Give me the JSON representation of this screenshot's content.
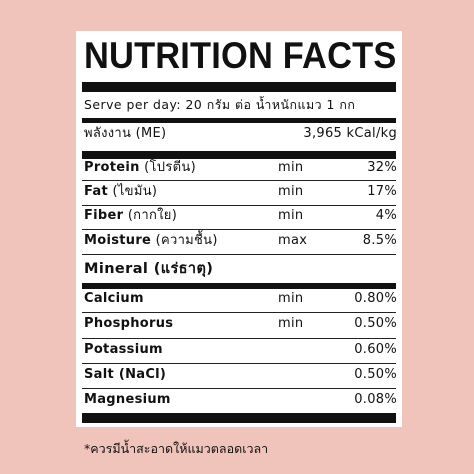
{
  "title": "NUTRITION FACTS",
  "serve": "Serve per day: 20 กรัม ต่อ น้ำหนักแมว 1 กก",
  "energy": {
    "label": "พลังงาน (ME)",
    "value": "3,965 kCal/kg"
  },
  "nutrients": [
    {
      "name": "Protein",
      "thai": "(โปรตีน)",
      "qualifier": "min",
      "value": "32%"
    },
    {
      "name": "Fat",
      "thai": "(ไขมัน)",
      "qualifier": "min",
      "value": "17%"
    },
    {
      "name": "Fiber",
      "thai": "(กากใย)",
      "qualifier": "min",
      "value": "4%"
    },
    {
      "name": "Moisture",
      "thai": "(ความชื้น)",
      "qualifier": "max",
      "value": "8.5%"
    }
  ],
  "mineral_heading": {
    "name": "Mineral",
    "thai": "(แร่ธาตุ)"
  },
  "minerals": [
    {
      "name": "Calcium",
      "qualifier": "min",
      "value": "0.80%"
    },
    {
      "name": "Phosphorus",
      "qualifier": "min",
      "value": "0.50%"
    },
    {
      "name": "Potassium",
      "qualifier": "",
      "value": "0.60%"
    },
    {
      "name": "Salt (NaCl)",
      "qualifier": "",
      "value": "0.50%"
    },
    {
      "name": "Magnesium",
      "qualifier": "",
      "value": "0.08%"
    }
  ],
  "footnote": "*ควรมีน้ำสะอาดให้แมวตลอดเวลา"
}
